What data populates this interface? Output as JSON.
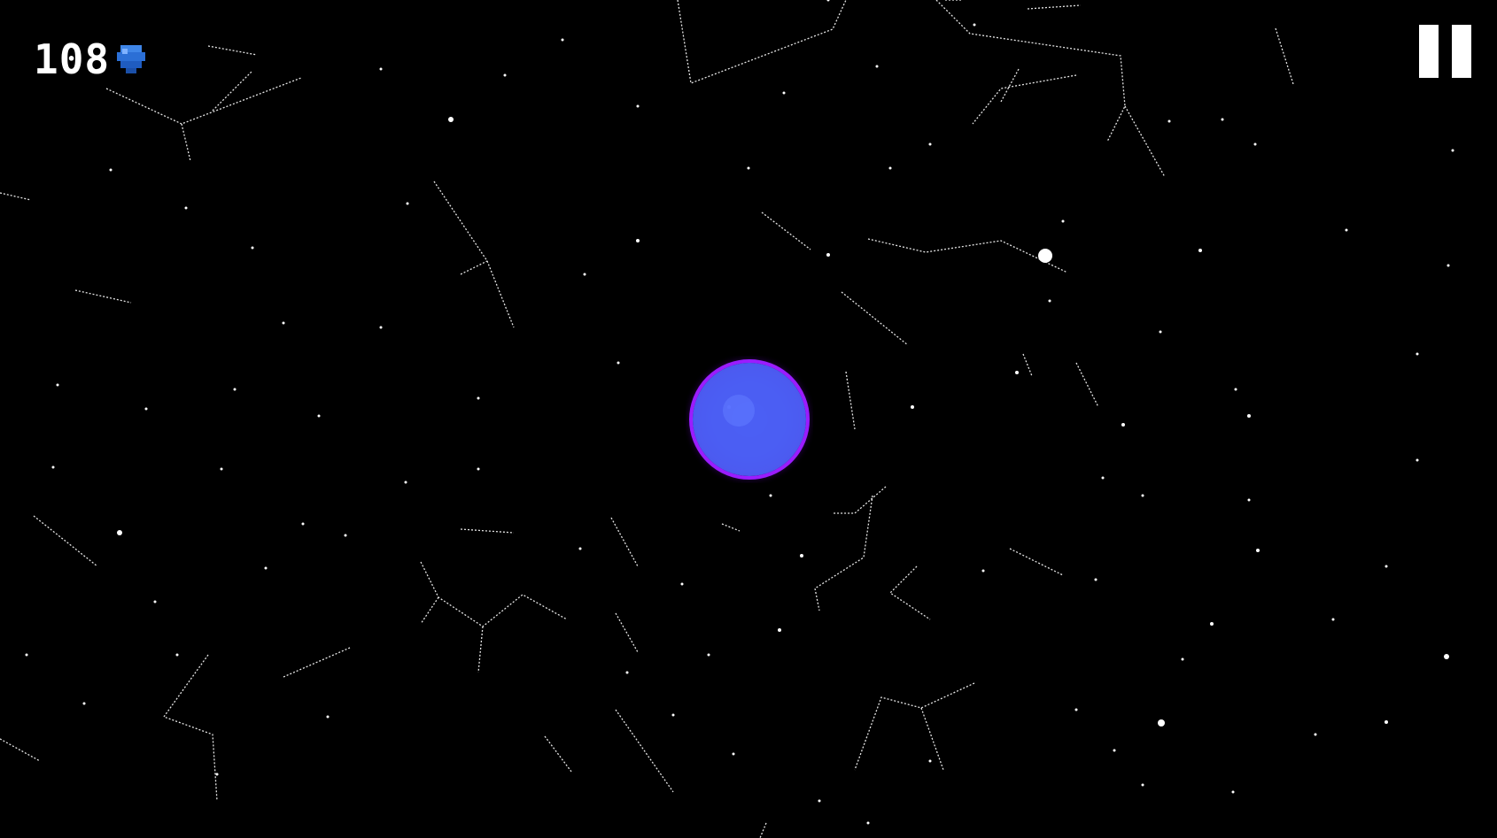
{
  "hud": {
    "score": "108",
    "gem_icon": "blue-gem-icon",
    "pause_icon": "pause-icon"
  },
  "colors": {
    "background": "#000000",
    "star": "#ffffff",
    "orb_ring": "#9b1cff",
    "orb_core": "#4f63ff",
    "gem": "#2b6fd6"
  }
}
